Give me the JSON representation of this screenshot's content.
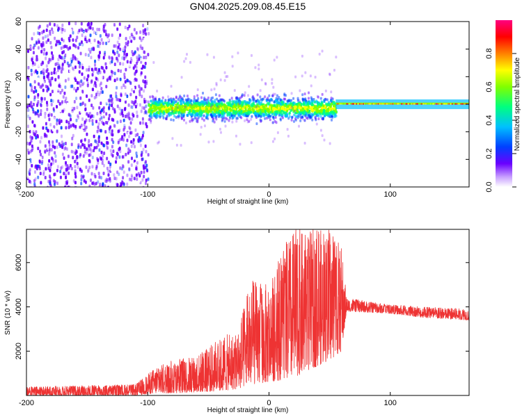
{
  "figure": {
    "title": "GN04.2025.209.08.45.E15"
  },
  "chart_data": [
    {
      "type": "heatmap",
      "name": "spectrogram",
      "xlabel": "Height of straight line (km)",
      "ylabel": "Frequency (Hz)",
      "xlim": [
        -200,
        165
      ],
      "ylim": [
        -60,
        60
      ],
      "xticks": [
        -200,
        -100,
        0,
        100
      ],
      "yticks": [
        -60,
        -40,
        -20,
        0,
        20,
        40,
        60
      ],
      "colorbar": {
        "label": "Normalized spectral amplitude",
        "range": [
          0,
          1
        ],
        "ticks": [
          0.0,
          0.2,
          0.4,
          0.6,
          0.8
        ],
        "colormap": [
          "#ffffff",
          "#6a00ff",
          "#0040ff",
          "#00c0ff",
          "#00ff80",
          "#80ff00",
          "#ffff00",
          "#ff8000",
          "#ff0000",
          "#ff0080"
        ]
      },
      "regions": [
        {
          "x": [
            -200,
            -100
          ],
          "freq_spread": 60,
          "amplitude": "low",
          "description": "broadband noise"
        },
        {
          "x": [
            -100,
            55
          ],
          "freq_center": 0,
          "freq_spread": 12,
          "amplitude": "medium"
        },
        {
          "x": [
            55,
            165
          ],
          "freq_center": 0,
          "freq_spread": 3,
          "amplitude": "high"
        }
      ],
      "grid": false
    },
    {
      "type": "line",
      "name": "snr",
      "xlabel": "Height of straight line (km)",
      "ylabel": "SNR (10 * v/v)",
      "xlim": [
        -200,
        165
      ],
      "ylim": [
        0,
        7500
      ],
      "xticks": [
        -200,
        -100,
        0,
        100
      ],
      "yticks": [
        2000,
        4000,
        6000
      ],
      "color": "#ee3333",
      "envelope": [
        {
          "x": -200,
          "lo": 0,
          "hi": 400
        },
        {
          "x": -110,
          "lo": 0,
          "hi": 500
        },
        {
          "x": -95,
          "lo": 100,
          "hi": 1200
        },
        {
          "x": -80,
          "lo": 100,
          "hi": 1600
        },
        {
          "x": -60,
          "lo": 150,
          "hi": 1800
        },
        {
          "x": -40,
          "lo": 200,
          "hi": 2600
        },
        {
          "x": -25,
          "lo": 300,
          "hi": 3000
        },
        {
          "x": -15,
          "lo": 500,
          "hi": 5300
        },
        {
          "x": 0,
          "lo": 600,
          "hi": 5000
        },
        {
          "x": 10,
          "lo": 700,
          "hi": 6500
        },
        {
          "x": 20,
          "lo": 800,
          "hi": 7500
        },
        {
          "x": 35,
          "lo": 1200,
          "hi": 7500
        },
        {
          "x": 50,
          "lo": 1600,
          "hi": 7500
        },
        {
          "x": 60,
          "lo": 2000,
          "hi": 6800
        },
        {
          "x": 64,
          "lo": 3800,
          "hi": 4400
        },
        {
          "x": 100,
          "lo": 3700,
          "hi": 4100
        },
        {
          "x": 130,
          "lo": 3500,
          "hi": 4000
        },
        {
          "x": 165,
          "lo": 3400,
          "hi": 3900
        }
      ],
      "grid": false
    }
  ]
}
